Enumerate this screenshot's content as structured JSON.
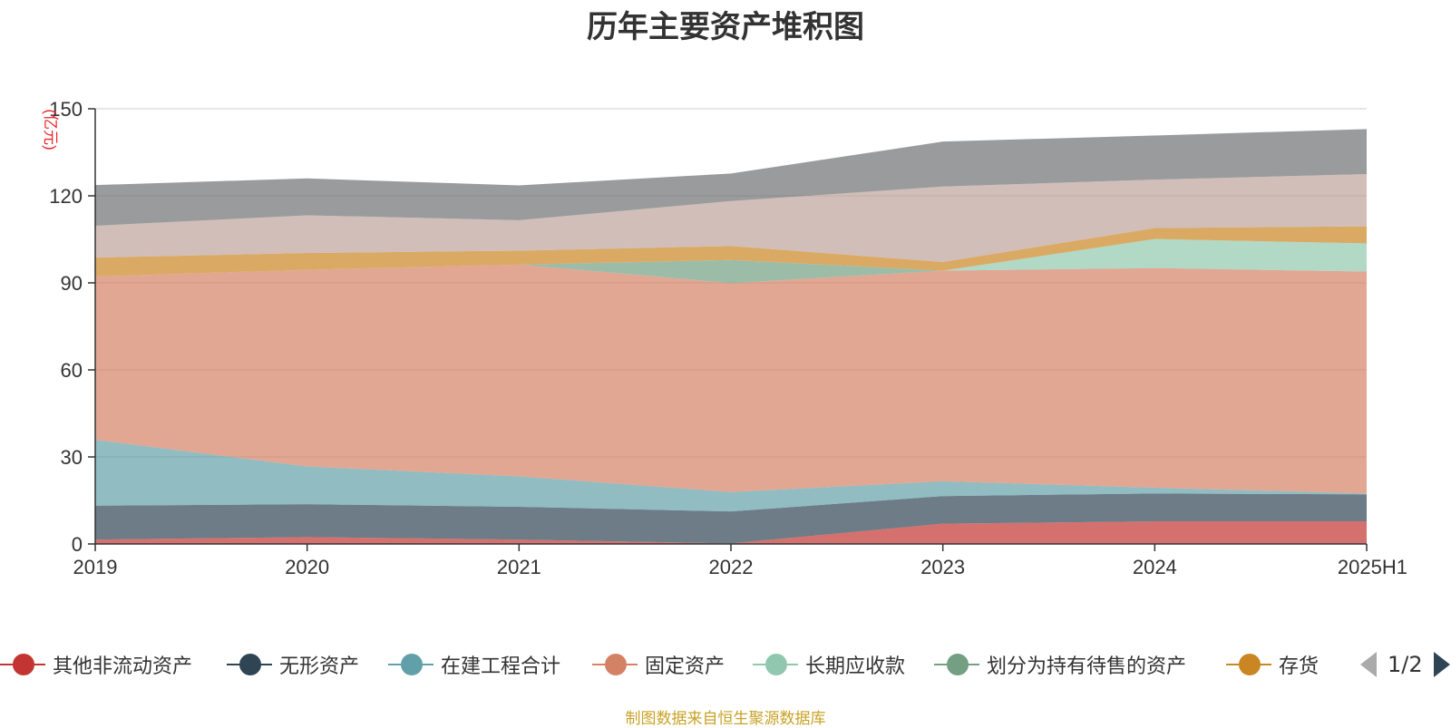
{
  "title": "历年主要资产堆积图",
  "source_note": "制图数据来自恒生聚源数据库",
  "pager": {
    "text": "1/2"
  },
  "chart_data": {
    "type": "area",
    "stacked": true,
    "title": "历年主要资产堆积图",
    "ylabel": "(亿元)",
    "xlabel": "",
    "ylim": [
      0,
      150
    ],
    "y_ticks": [
      0,
      30,
      60,
      90,
      120,
      150
    ],
    "grid": true,
    "legend_position": "bottom",
    "categories": [
      "2019",
      "2020",
      "2021",
      "2022",
      "2023",
      "2024",
      "2025H1"
    ],
    "series": [
      {
        "name": "其他非流动资产",
        "color": "#c23531",
        "values": [
          1.5,
          2.4,
          1.5,
          0.2,
          7.0,
          7.8,
          7.8
        ]
      },
      {
        "name": "无形资产",
        "color": "#2f4554",
        "values": [
          11.7,
          11.3,
          11.3,
          11.0,
          9.5,
          9.6,
          9.3
        ]
      },
      {
        "name": "在建工程合计",
        "color": "#61a0a8",
        "values": [
          22.7,
          13.0,
          10.5,
          6.7,
          5.1,
          2.0,
          0.3
        ]
      },
      {
        "name": "固定资产",
        "color": "#d48265",
        "values": [
          56.3,
          67.8,
          73.0,
          72.0,
          72.6,
          75.7,
          76.5
        ]
      },
      {
        "name": "长期应收款",
        "color": "#91c7ae",
        "values": [
          0,
          0,
          0,
          0,
          0,
          10.0,
          9.7
        ]
      },
      {
        "name": "划分为持有待售的资产",
        "color": "#749f83",
        "values": [
          0,
          0,
          0,
          8.0,
          0,
          0,
          0
        ]
      },
      {
        "name": "存货",
        "color": "#ca8622",
        "values": [
          6.5,
          5.8,
          4.8,
          4.8,
          3.0,
          3.8,
          5.9
        ]
      },
      {
        "name": "",
        "color": "#bda29a",
        "values": [
          11.0,
          13.0,
          10.5,
          15.5,
          26.0,
          16.7,
          18.0
        ]
      },
      {
        "name": "",
        "color": "#6e7074",
        "values": [
          14.0,
          12.7,
          12.0,
          9.5,
          15.5,
          15.2,
          15.5
        ]
      }
    ]
  }
}
